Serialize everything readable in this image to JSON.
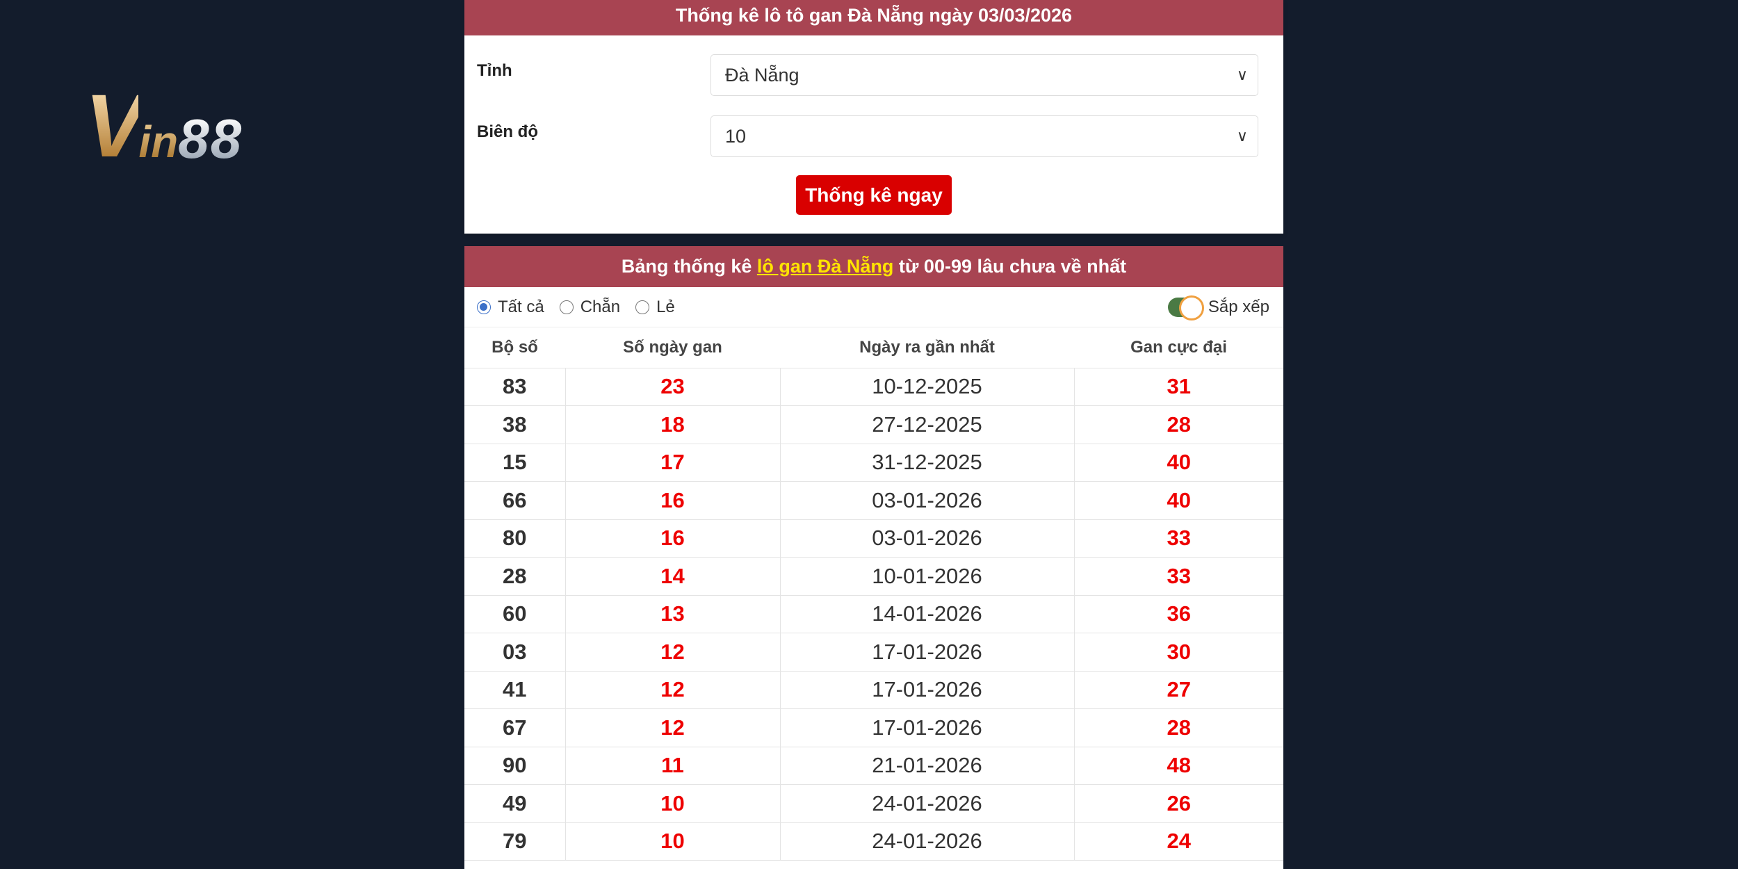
{
  "logo": {
    "text": "Vin88"
  },
  "form": {
    "title": "Thống kê lô tô gan Đà Nẵng ngày 03/03/2026",
    "province_label": "Tỉnh",
    "province_value": "Đà Nẵng",
    "range_label": "Biên độ",
    "range_value": "10",
    "submit_label": "Thống kê ngay"
  },
  "table_section": {
    "title_prefix": "Bảng thống kê ",
    "title_link": "lô gan Đà Nẵng",
    "title_suffix": " từ 00-99 lâu chưa về nhất",
    "filters": [
      {
        "label": "Tất cả",
        "checked": true
      },
      {
        "label": "Chẵn",
        "checked": false
      },
      {
        "label": "Lẻ",
        "checked": false
      }
    ],
    "sort_label": "Sắp xếp",
    "sort_on": true,
    "columns": [
      "Bộ số",
      "Số ngày gan",
      "Ngày ra gần nhất",
      "Gan cực đại"
    ],
    "rows": [
      [
        "83",
        "23",
        "10-12-2025",
        "31"
      ],
      [
        "38",
        "18",
        "27-12-2025",
        "28"
      ],
      [
        "15",
        "17",
        "31-12-2025",
        "40"
      ],
      [
        "66",
        "16",
        "03-01-2026",
        "40"
      ],
      [
        "80",
        "16",
        "03-01-2026",
        "33"
      ],
      [
        "28",
        "14",
        "10-01-2026",
        "33"
      ],
      [
        "60",
        "13",
        "14-01-2026",
        "36"
      ],
      [
        "03",
        "12",
        "17-01-2026",
        "30"
      ],
      [
        "41",
        "12",
        "17-01-2026",
        "27"
      ],
      [
        "67",
        "12",
        "17-01-2026",
        "28"
      ],
      [
        "90",
        "11",
        "21-01-2026",
        "48"
      ],
      [
        "49",
        "10",
        "24-01-2026",
        "26"
      ],
      [
        "79",
        "10",
        "24-01-2026",
        "24"
      ]
    ]
  },
  "colors": {
    "header": "#a84452",
    "accent_red": "#d90000",
    "link_yellow": "#ffe400",
    "background": "#131c2c"
  }
}
